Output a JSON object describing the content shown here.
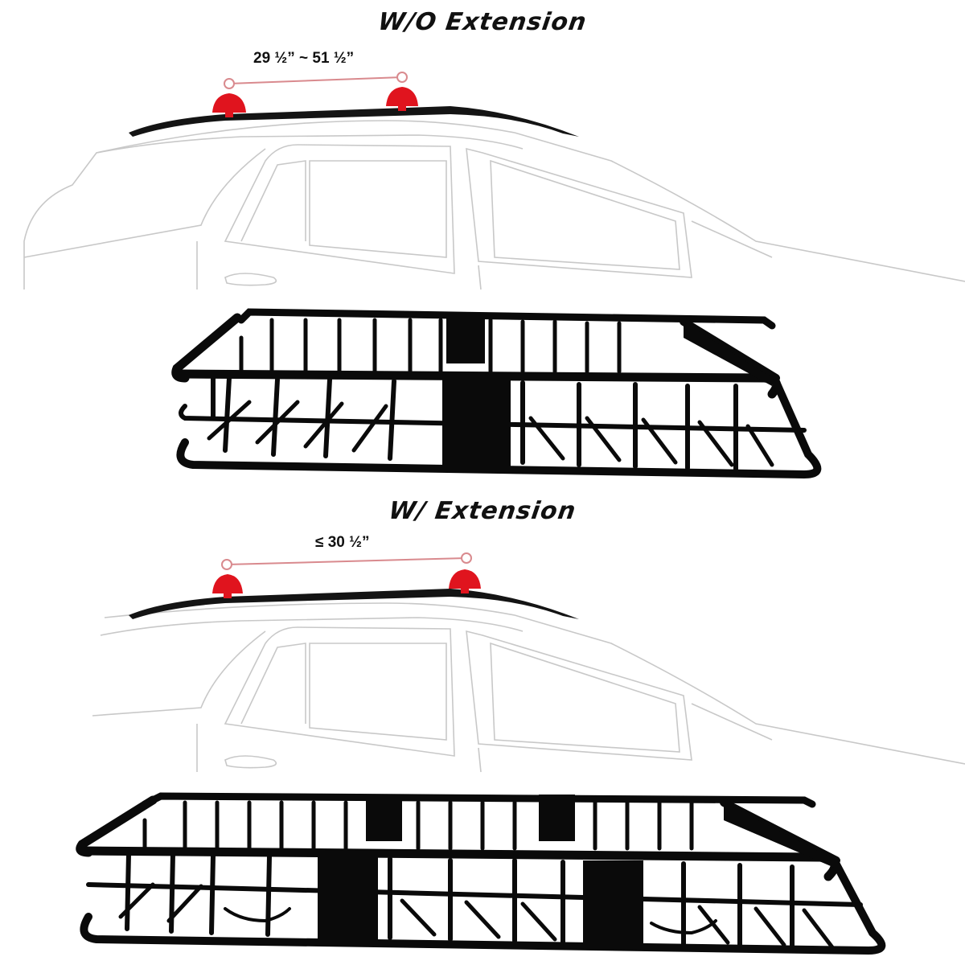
{
  "sections": [
    {
      "title": "W/O Extension",
      "measurement": "29 ½” ~ 51 ½”"
    },
    {
      "title": "W/ Extension",
      "measurement": "≤ 30 ½”"
    }
  ],
  "colors": {
    "clamp_red": "#e0141e",
    "guide_line": "#d98a8e",
    "car_outline": "#c8c8c8",
    "basket": "#0a0a0a",
    "roof_rail": "#141414"
  },
  "icons": [
    "car-outline-icon",
    "roof-clamp-icon",
    "cargo-basket-icon"
  ]
}
